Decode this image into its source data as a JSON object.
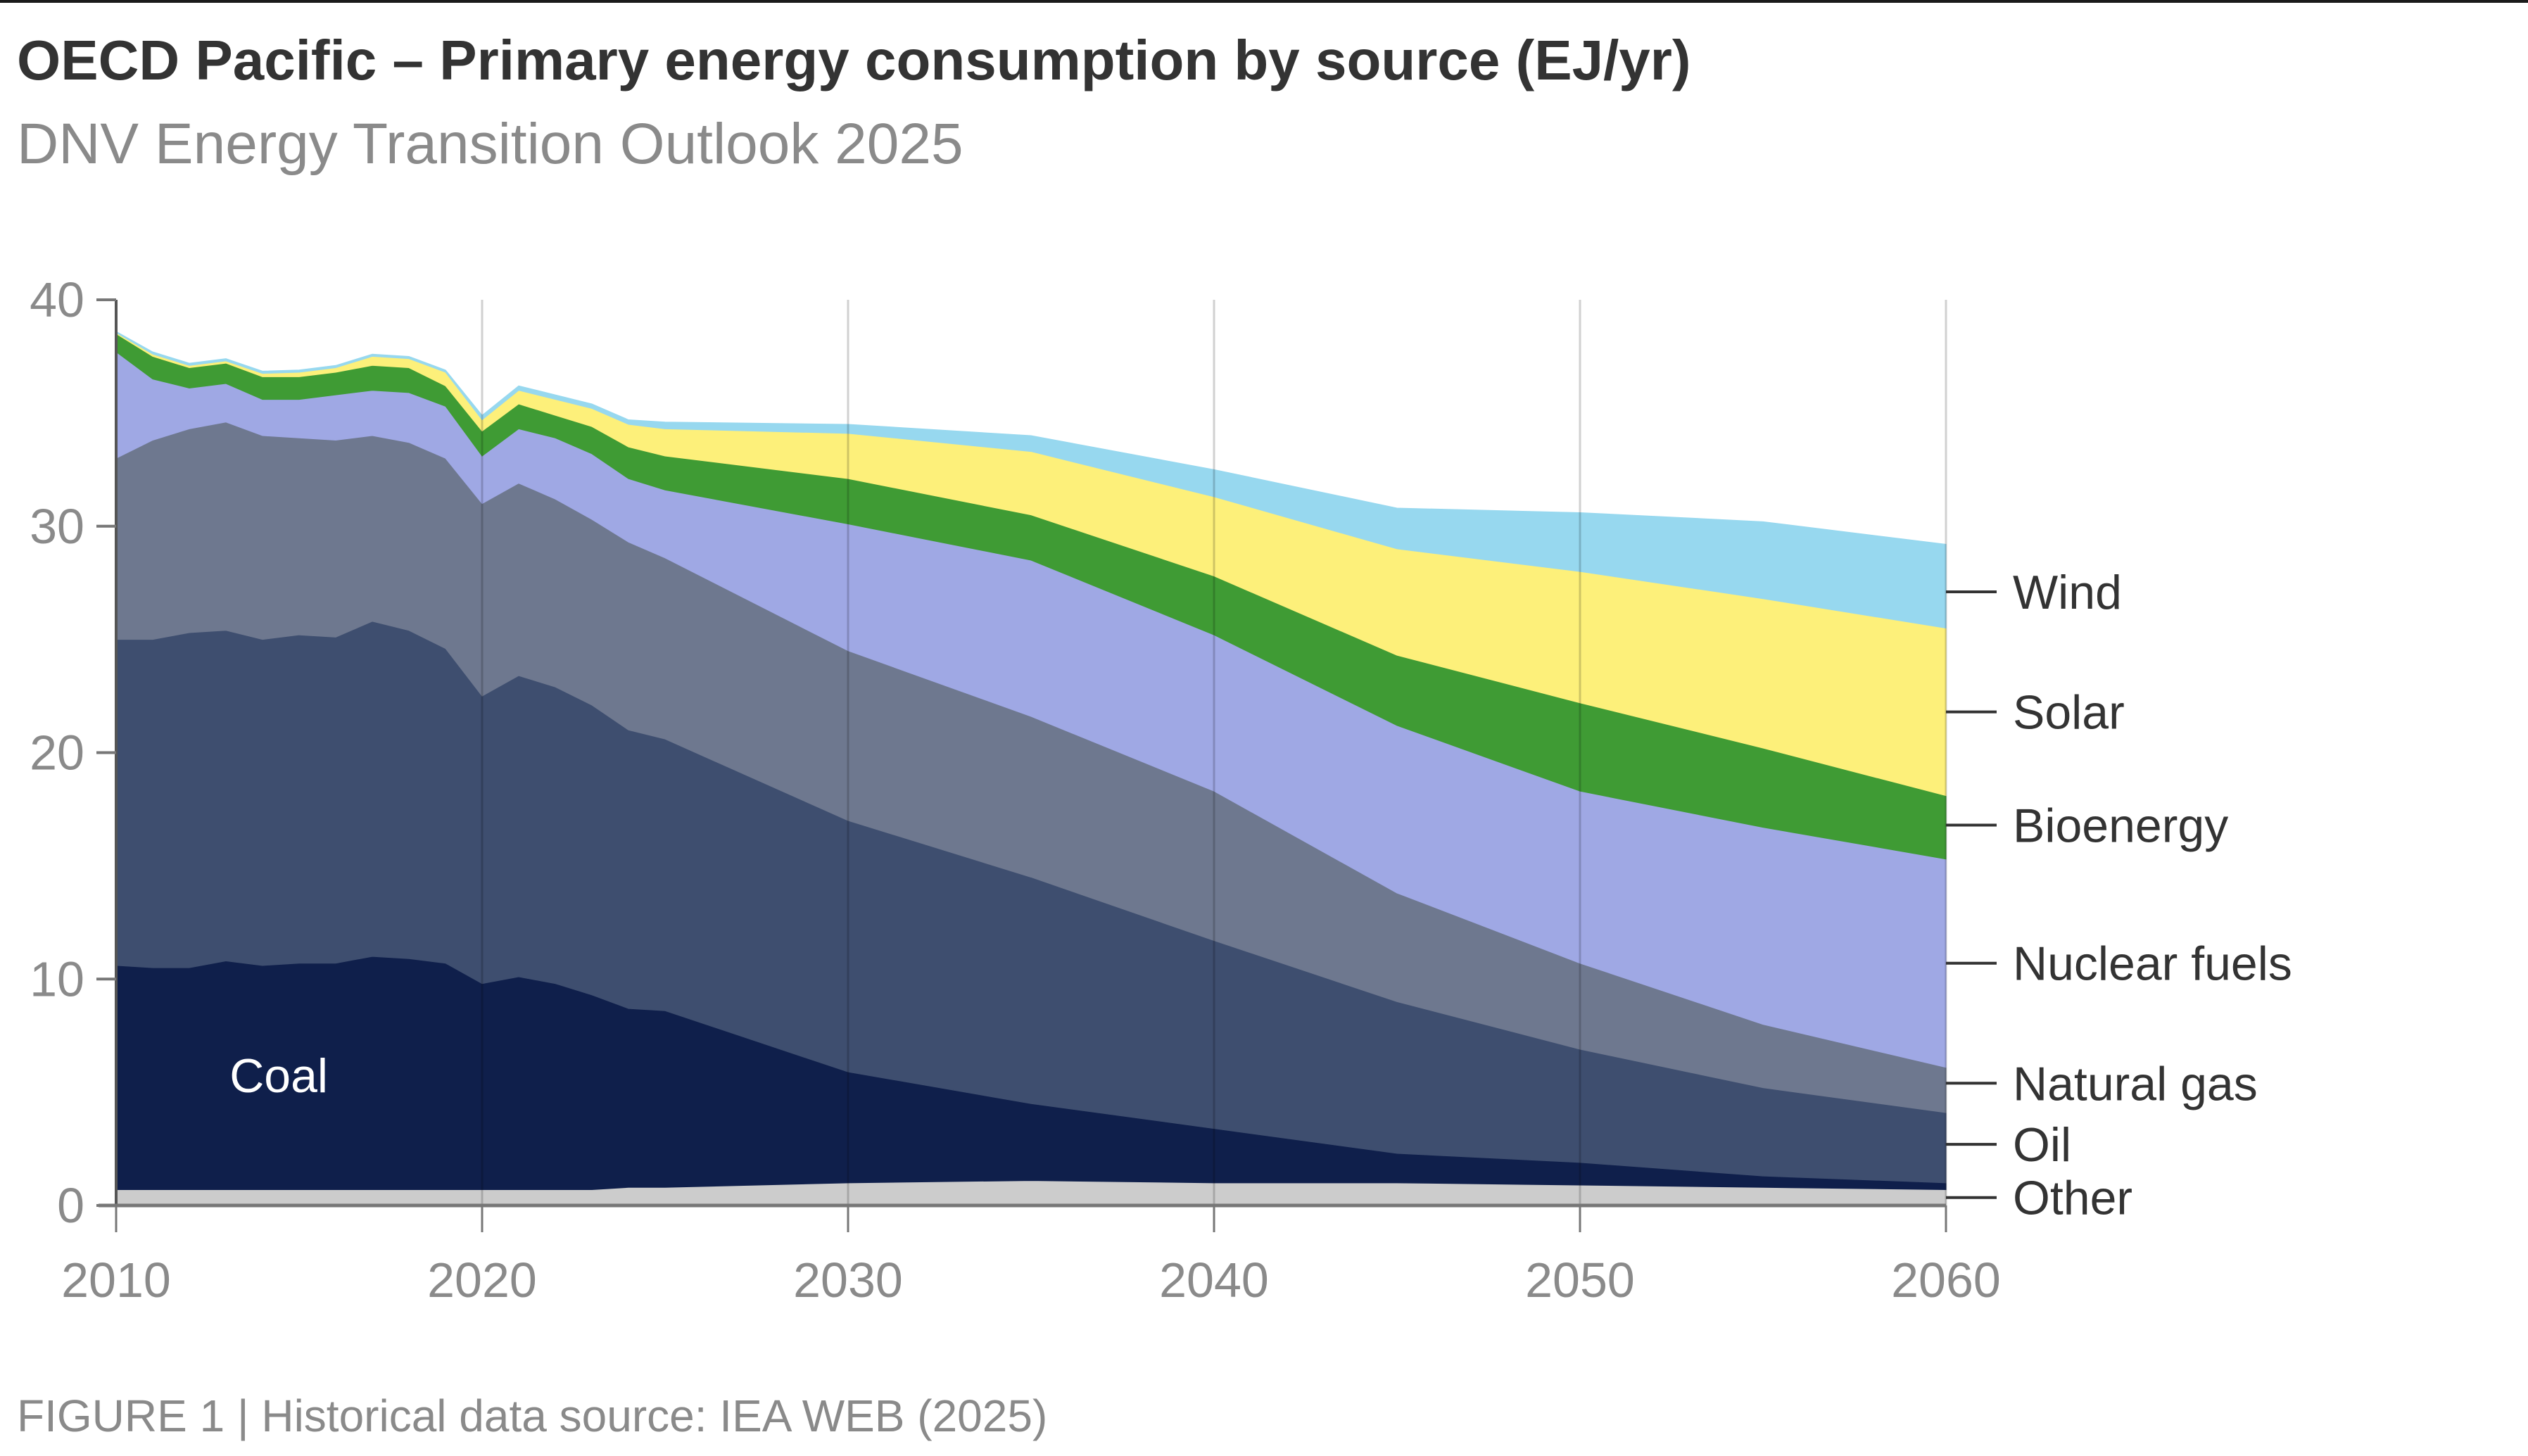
{
  "header": {
    "title": "OECD Pacific – Primary energy consumption by source (EJ/yr)",
    "subtitle": "DNV Energy Transition Outlook 2025"
  },
  "footer": {
    "caption": "FIGURE 1 | Historical data source: IEA WEB (2025)"
  },
  "chart_data": {
    "type": "area",
    "stacked": true,
    "title": "OECD Pacific – Primary energy consumption by source (EJ/yr)",
    "subtitle": "DNV Energy Transition Outlook 2025",
    "xlabel": "",
    "ylabel": "EJ/yr",
    "xlim": [
      2010,
      2060
    ],
    "ylim": [
      0,
      40
    ],
    "x_ticks": [
      "2010",
      "2020",
      "2030",
      "2040",
      "2050",
      "2060"
    ],
    "y_ticks": [
      "0",
      "10",
      "20",
      "30",
      "40"
    ],
    "grid": "vertical lines at decade ticks",
    "legend": "right, labels aligned to series at 2060",
    "inline_label": "Coal",
    "x": [
      2010,
      2011,
      2012,
      2013,
      2014,
      2015,
      2016,
      2017,
      2018,
      2019,
      2020,
      2021,
      2022,
      2023,
      2024,
      2025,
      2030,
      2035,
      2040,
      2045,
      2050,
      2055,
      2060
    ],
    "series": [
      {
        "name": "Other",
        "color": "#CCCCCC",
        "values": [
          0.7,
          0.7,
          0.7,
          0.7,
          0.7,
          0.7,
          0.7,
          0.7,
          0.7,
          0.7,
          0.7,
          0.7,
          0.7,
          0.7,
          0.8,
          0.8,
          1.0,
          1.1,
          1.0,
          1.0,
          0.9,
          0.8,
          0.7
        ]
      },
      {
        "name": "Coal",
        "color": "#0F1F4B",
        "values": [
          9.9,
          9.8,
          9.8,
          10.1,
          9.9,
          10.0,
          10.0,
          10.3,
          10.2,
          10.0,
          9.1,
          9.4,
          9.1,
          8.6,
          7.9,
          7.8,
          4.9,
          3.4,
          2.4,
          1.3,
          1.0,
          0.5,
          0.3
        ]
      },
      {
        "name": "Oil",
        "color": "#3E4E6F",
        "values": [
          14.4,
          14.5,
          14.8,
          14.6,
          14.4,
          14.5,
          14.4,
          14.8,
          14.5,
          13.9,
          12.7,
          13.3,
          13.1,
          12.8,
          12.3,
          12.0,
          11.1,
          10.0,
          8.3,
          6.7,
          5.0,
          3.9,
          3.1
        ]
      },
      {
        "name": "Natural gas",
        "color": "#6E788F",
        "values": [
          8.0,
          8.8,
          9.0,
          9.2,
          9.0,
          8.7,
          8.7,
          8.2,
          8.3,
          8.4,
          8.5,
          8.5,
          8.3,
          8.2,
          8.3,
          8.0,
          7.5,
          7.1,
          6.6,
          4.8,
          3.8,
          2.8,
          2.0
        ]
      },
      {
        "name": "Nuclear fuels",
        "color": "#9FA8E4",
        "values": [
          4.7,
          2.7,
          1.8,
          1.7,
          1.6,
          1.7,
          2.0,
          2.0,
          2.2,
          2.3,
          2.1,
          2.4,
          2.7,
          2.9,
          2.8,
          3.0,
          5.6,
          6.9,
          6.9,
          7.4,
          7.6,
          8.7,
          9.2
        ]
      },
      {
        "name": "Bioenergy",
        "color": "#3F9B34",
        "values": [
          0.8,
          1.0,
          0.9,
          0.9,
          1.0,
          1.0,
          1.0,
          1.1,
          1.1,
          0.9,
          1.1,
          1.1,
          1.0,
          1.2,
          1.4,
          1.5,
          2.0,
          2.0,
          2.6,
          3.1,
          3.9,
          3.5,
          2.8
        ]
      },
      {
        "name": "Solar",
        "color": "#FDF07A",
        "values": [
          0.05,
          0.1,
          0.1,
          0.1,
          0.15,
          0.2,
          0.2,
          0.4,
          0.4,
          0.6,
          0.5,
          0.6,
          0.7,
          0.8,
          1.0,
          1.2,
          2.0,
          2.8,
          3.5,
          4.7,
          5.8,
          6.6,
          7.4
        ]
      },
      {
        "name": "Wind",
        "color": "#97D8EF",
        "values": [
          0.05,
          0.1,
          0.1,
          0.1,
          0.1,
          0.1,
          0.1,
          0.1,
          0.1,
          0.1,
          0.2,
          0.2,
          0.2,
          0.2,
          0.2,
          0.3,
          0.4,
          0.7,
          1.2,
          1.8,
          2.6,
          3.4,
          3.7
        ]
      }
    ]
  }
}
